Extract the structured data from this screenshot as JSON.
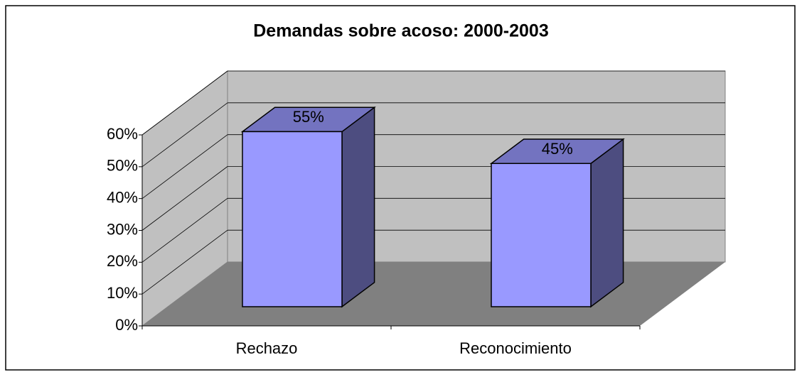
{
  "chart_data": {
    "type": "bar3d",
    "title": "Demandas sobre acoso: 2000-2003",
    "categories": [
      "Rechazo",
      "Reconocimiento"
    ],
    "values": [
      55,
      45
    ],
    "value_labels": [
      "55%",
      "45%"
    ],
    "color": "#9999ff",
    "ylim": [
      0,
      60
    ],
    "yticks": [
      {
        "value": 0,
        "label": "0%"
      },
      {
        "value": 10,
        "label": "10%"
      },
      {
        "value": 20,
        "label": "20%"
      },
      {
        "value": 30,
        "label": "30%"
      },
      {
        "value": 40,
        "label": "40%"
      },
      {
        "value": 50,
        "label": "50%"
      },
      {
        "value": 60,
        "label": "60%"
      }
    ],
    "grid": true
  }
}
